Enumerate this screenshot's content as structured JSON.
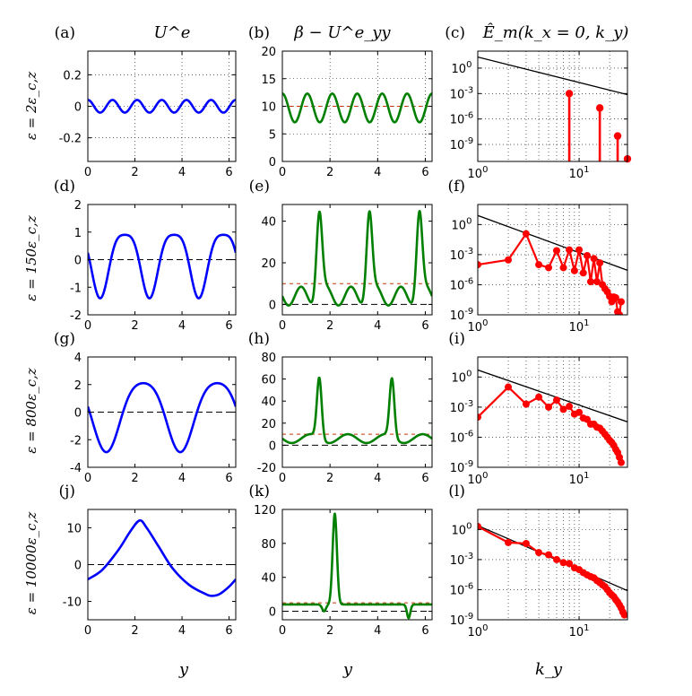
{
  "column_titles": [
    "U^e",
    "β − U^e_yy",
    "Ê_m(k_x = 0, k_y)"
  ],
  "row_labels": [
    "ε = 2ε_c,z",
    "ε = 150ε_c,z",
    "ε = 800ε_c,z",
    "ε = 10000ε_c,z"
  ],
  "panel_labels": [
    "(a)",
    "(b)",
    "(c)",
    "(d)",
    "(e)",
    "(f)",
    "(g)",
    "(h)",
    "(i)",
    "(j)",
    "(k)",
    "(l)"
  ],
  "xlabel_lin": "y",
  "xlabel_log": "k_y",
  "colors": {
    "col1": "#0000ff",
    "col2": "#007f00",
    "col3": "#ff0000",
    "beta_line": "#cc3300",
    "zero_line": "#000000",
    "powerlaw": "#000000"
  },
  "chart_data": [
    {
      "panel": "(a)",
      "type": "line",
      "xlim": [
        0,
        6.2832
      ],
      "ylim": [
        -0.35,
        0.35
      ],
      "xticks": [
        0,
        2,
        4,
        6
      ],
      "yticks": [
        -0.2,
        0,
        0.2
      ],
      "ytick_labels": [
        "-0.2",
        "0",
        "0.2"
      ],
      "grid": true,
      "zero_line": false,
      "series": [
        {
          "color": "blue",
          "kind": "harmonic",
          "mean": 0,
          "terms": [
            [
              6,
              0.04,
              0
            ]
          ]
        }
      ]
    },
    {
      "panel": "(b)",
      "type": "line",
      "xlim": [
        0,
        6.2832
      ],
      "ylim": [
        0,
        20
      ],
      "xticks": [
        0,
        2,
        4,
        6
      ],
      "yticks": [
        0,
        5,
        10,
        15,
        20
      ],
      "ytick_labels": [
        "0",
        "5",
        "10",
        "15",
        "20"
      ],
      "grid": true,
      "beta": 10,
      "series": [
        {
          "color": "green",
          "kind": "harmonic",
          "mean": 9.7,
          "terms": [
            [
              6,
              2.6,
              0
            ]
          ]
        }
      ]
    },
    {
      "panel": "(c)",
      "type": "scatter",
      "log": true,
      "xlim": [
        1,
        30
      ],
      "ylim": [
        1e-11,
        100
      ],
      "xticks": [
        1,
        10
      ],
      "xtick_labels": [
        "10^0",
        "10^1"
      ],
      "yticks": [
        1,
        0.001,
        1e-06,
        1e-09
      ],
      "ytick_labels": [
        "10^0",
        "10^-3",
        "10^-6",
        "10^-9"
      ],
      "grid": true,
      "powerlaw": {
        "x0": 1,
        "y0": 20,
        "exponent": -3
      },
      "stems": true,
      "series": [
        {
          "color": "red",
          "x": [
            8,
            16,
            24,
            30
          ],
          "y": [
            0.001,
            2e-05,
            1e-08,
            2e-11
          ]
        }
      ]
    },
    {
      "panel": "(d)",
      "type": "line",
      "xlim": [
        0,
        6.2832
      ],
      "ylim": [
        -2,
        2
      ],
      "xticks": [
        0,
        2,
        4,
        6
      ],
      "yticks": [
        -2,
        -1,
        0,
        1,
        2
      ],
      "ytick_labels": [
        "-2",
        "-1",
        "0",
        "1",
        "2"
      ],
      "grid": false,
      "zero_line": true,
      "series": [
        {
          "color": "blue",
          "kind": "harmonic",
          "mean": 0,
          "terms": [
            [
              3,
              1.15,
              1.5708
            ],
            [
              6,
              0.25,
              0
            ]
          ]
        }
      ]
    },
    {
      "panel": "(e)",
      "type": "line",
      "xlim": [
        0,
        6.2832
      ],
      "ylim": [
        -5,
        48
      ],
      "xticks": [
        0,
        2,
        4,
        6
      ],
      "yticks": [
        0,
        20,
        40
      ],
      "ytick_labels": [
        "0",
        "20",
        "40"
      ],
      "grid": false,
      "zero_line": true,
      "beta": 10,
      "series": [
        {
          "color": "green",
          "kind": "peaks",
          "base": 4,
          "wave": [
            [
              6,
              4.5,
              1.5708
            ]
          ],
          "peaks": [
            [
              1.55,
              41,
              0.12
            ],
            [
              3.65,
              41,
              0.12
            ],
            [
              5.75,
              41,
              0.12
            ]
          ]
        }
      ]
    },
    {
      "panel": "(f)",
      "type": "line",
      "log": true,
      "xlim": [
        1,
        30
      ],
      "ylim": [
        1e-09,
        100
      ],
      "xticks": [
        1,
        10
      ],
      "xtick_labels": [
        "10^0",
        "10^1"
      ],
      "yticks": [
        1,
        0.001,
        1e-06,
        1e-09
      ],
      "ytick_labels": [
        "10^0",
        "10^-3",
        "10^-6",
        "10^-9"
      ],
      "grid": true,
      "powerlaw": {
        "x0": 1,
        "y0": 8,
        "exponent": -3.7
      },
      "series": [
        {
          "color": "red",
          "x": [
            1,
            2,
            3,
            4,
            5,
            6,
            7,
            8,
            9,
            10,
            11,
            12,
            13,
            14,
            15,
            16,
            17,
            18,
            19,
            20,
            21,
            22,
            23,
            24,
            25,
            26
          ],
          "y": [
            0.0001,
            0.0003,
            0.12,
            0.0001,
            5e-05,
            0.0025,
            5e-05,
            0.003,
            2.5e-05,
            0.003,
            1.5e-05,
            0.0008,
            2e-06,
            0.0004,
            2e-06,
            0.00015,
            1e-06,
            4e-07,
            2e-07,
            7e-08,
            2e-08,
            6e-08,
            5e-08,
            2e-09,
            1e-09,
            2e-08
          ]
        }
      ]
    },
    {
      "panel": "(g)",
      "type": "line",
      "xlim": [
        0,
        6.2832
      ],
      "ylim": [
        -4,
        4
      ],
      "xticks": [
        0,
        2,
        4,
        6
      ],
      "yticks": [
        -4,
        -2,
        0,
        2,
        4
      ],
      "ytick_labels": [
        "-4",
        "-2",
        "0",
        "2",
        "4"
      ],
      "grid": false,
      "zero_line": true,
      "series": [
        {
          "color": "blue",
          "kind": "harmonic",
          "mean": 0,
          "terms": [
            [
              2,
              2.5,
              1.5708
            ],
            [
              4,
              0.4,
              0
            ]
          ]
        }
      ]
    },
    {
      "panel": "(h)",
      "type": "line",
      "xlim": [
        0,
        6.2832
      ],
      "ylim": [
        -20,
        80
      ],
      "xticks": [
        0,
        2,
        4,
        6
      ],
      "yticks": [
        -20,
        0,
        20,
        40,
        60,
        80
      ],
      "ytick_labels": [
        "-20",
        "0",
        "20",
        "40",
        "60",
        "80"
      ],
      "grid": false,
      "zero_line": true,
      "beta": 10,
      "series": [
        {
          "color": "green",
          "kind": "peaks",
          "base": 6,
          "wave": [
            [
              4,
              4,
              1.5708
            ]
          ],
          "peaks": [
            [
              1.55,
              55,
              0.1
            ],
            [
              4.6,
              53,
              0.1
            ]
          ]
        }
      ]
    },
    {
      "panel": "(i)",
      "type": "line",
      "log": true,
      "xlim": [
        1,
        30
      ],
      "ylim": [
        1e-09,
        100
      ],
      "xticks": [
        1,
        10
      ],
      "xtick_labels": [
        "10^0",
        "10^1"
      ],
      "yticks": [
        1,
        0.001,
        1e-06,
        1e-09
      ],
      "ytick_labels": [
        "10^0",
        "10^-3",
        "10^-6",
        "10^-9"
      ],
      "grid": true,
      "powerlaw": {
        "x0": 1,
        "y0": 5,
        "exponent": -3.5
      },
      "series": [
        {
          "color": "red",
          "x": [
            1,
            2,
            3,
            4,
            5,
            6,
            7,
            8,
            9,
            10,
            11,
            12,
            13,
            14,
            15,
            16,
            17,
            18,
            19,
            20,
            21,
            22,
            23,
            24,
            25,
            26
          ],
          "y": [
            0.0001,
            0.1,
            0.002,
            0.01,
            0.001,
            0.005,
            0.0006,
            0.0012,
            0.0002,
            0.0003,
            8e-05,
            6e-05,
            2e-05,
            2e-05,
            1e-05,
            8e-06,
            4e-06,
            2e-06,
            1e-06,
            5e-07,
            3e-07,
            1.5e-07,
            6e-08,
            3e-08,
            1e-08,
            3e-09
          ]
        }
      ]
    },
    {
      "panel": "(j)",
      "type": "line",
      "xlim": [
        0,
        6.2832
      ],
      "ylim": [
        -15,
        15
      ],
      "xticks": [
        0,
        2,
        4,
        6
      ],
      "yticks": [
        -10,
        0,
        10
      ],
      "ytick_labels": [
        "-10",
        "0",
        "10"
      ],
      "grid": false,
      "zero_line": true,
      "series": [
        {
          "color": "blue",
          "kind": "points",
          "x": [
            0,
            0.6,
            1.3,
            1.8,
            2.2,
            2.5,
            3.0,
            3.6,
            4.3,
            5.0,
            5.3,
            5.6,
            6.0,
            6.2832
          ],
          "y": [
            -4,
            -1.5,
            4,
            9,
            12,
            10,
            5,
            -1,
            -5.5,
            -8,
            -8.5,
            -8,
            -6,
            -4
          ]
        }
      ]
    },
    {
      "panel": "(k)",
      "type": "line",
      "xlim": [
        0,
        6.2832
      ],
      "ylim": [
        -10,
        120
      ],
      "xticks": [
        0,
        2,
        4,
        6
      ],
      "yticks": [
        0,
        40,
        80,
        120
      ],
      "ytick_labels": [
        "0",
        "40",
        "80",
        "120"
      ],
      "grid": false,
      "zero_line": true,
      "beta": 10,
      "series": [
        {
          "color": "green",
          "kind": "peaks",
          "base": 8,
          "wave": [],
          "peaks": [
            [
              2.2,
              107,
              0.09
            ],
            [
              1.75,
              -8,
              0.08
            ],
            [
              5.3,
              -16,
              0.07
            ]
          ]
        }
      ]
    },
    {
      "panel": "(l)",
      "type": "line",
      "log": true,
      "xlim": [
        1,
        30
      ],
      "ylim": [
        1e-09,
        100
      ],
      "xticks": [
        1,
        10
      ],
      "xtick_labels": [
        "10^0",
        "10^1"
      ],
      "yticks": [
        1,
        0.001,
        1e-06,
        1e-09
      ],
      "ytick_labels": [
        "10^0",
        "10^-3",
        "10^-6",
        "10^-9"
      ],
      "grid": true,
      "powerlaw": {
        "x0": 1,
        "y0": 2.5,
        "exponent": -4.4
      },
      "series": [
        {
          "color": "red",
          "x": [
            1,
            2,
            3,
            4,
            5,
            6,
            7,
            8,
            9,
            10,
            11,
            12,
            13,
            14,
            15,
            16,
            17,
            18,
            19,
            20,
            21,
            22,
            23,
            24,
            25,
            26,
            27,
            28
          ],
          "y": [
            2,
            0.05,
            0.04,
            0.005,
            0.003,
            0.001,
            0.0005,
            0.0004,
            0.00015,
            0.0001,
            5e-05,
            3e-05,
            2e-05,
            1.5e-05,
            8e-06,
            5e-06,
            3e-06,
            2e-06,
            1e-06,
            5e-07,
            3e-07,
            2e-07,
            1e-07,
            6e-08,
            3e-08,
            1.5e-08,
            6e-09,
            3e-09
          ]
        }
      ]
    }
  ]
}
